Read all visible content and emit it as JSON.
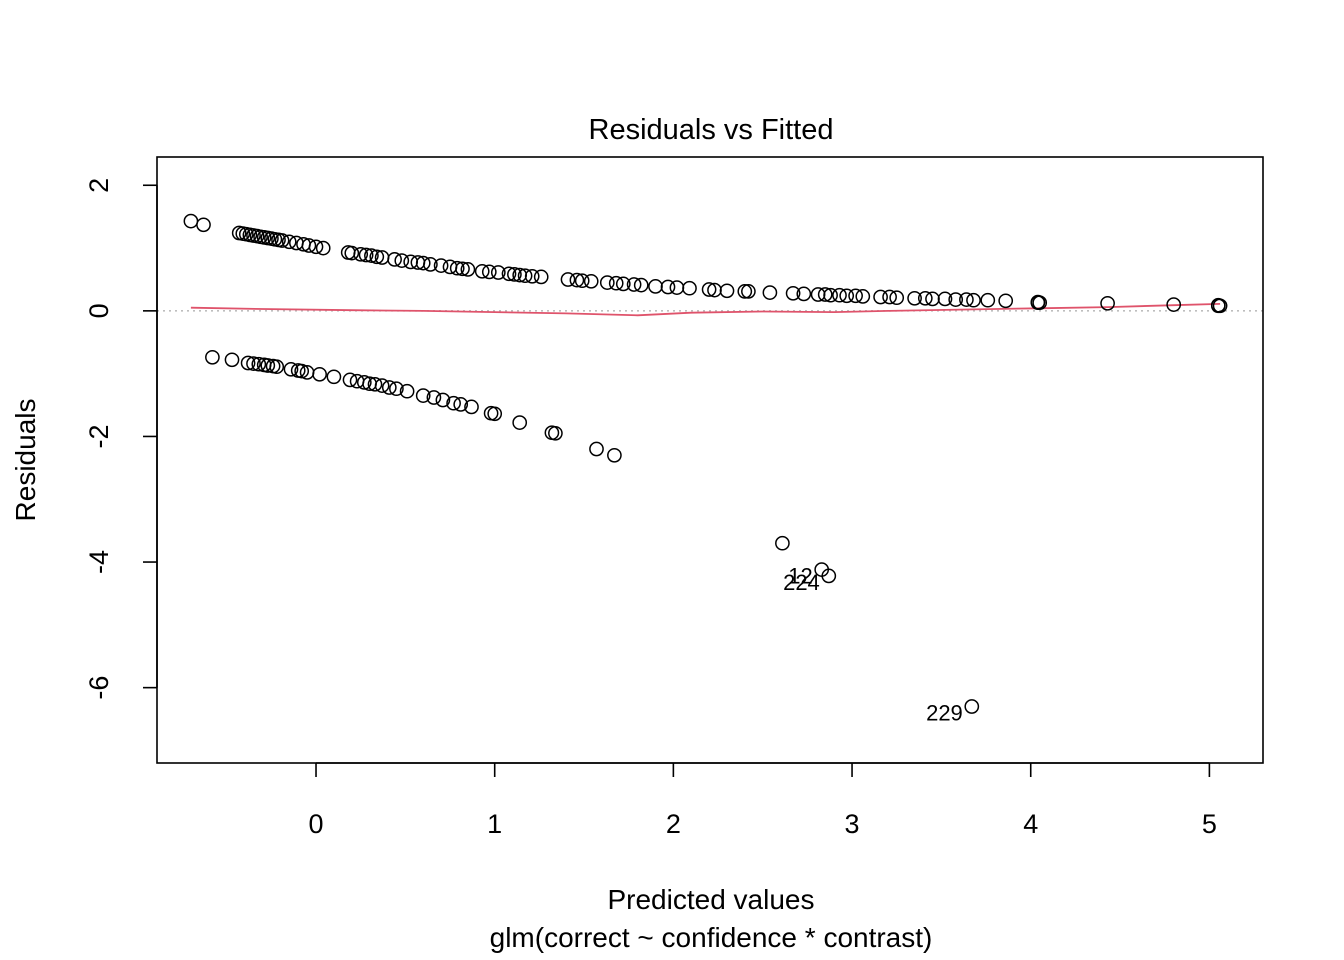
{
  "chart_data": {
    "type": "scatter",
    "title": "Residuals vs Fitted",
    "xlabel": "Predicted values",
    "subtitle": "glm(correct ~ confidence * contrast)",
    "ylabel": "Residuals",
    "xlim": [
      -0.89,
      5.3
    ],
    "ylim": [
      -7.2,
      2.45
    ],
    "xticks": [
      0,
      1,
      2,
      3,
      4,
      5
    ],
    "yticks": [
      -6,
      -4,
      -2,
      0,
      2
    ],
    "grid": false,
    "reference_line_y": 0,
    "colors": {
      "points": "#000000",
      "smooth": "#DF536B",
      "reference": "#BEBEBE"
    },
    "upper_band": [
      [
        -0.7,
        1.43
      ],
      [
        -0.63,
        1.37
      ],
      [
        -0.43,
        1.24
      ],
      [
        -0.41,
        1.23
      ],
      [
        -0.39,
        1.22
      ],
      [
        -0.37,
        1.21
      ],
      [
        -0.35,
        1.2
      ],
      [
        -0.33,
        1.19
      ],
      [
        -0.31,
        1.18
      ],
      [
        -0.29,
        1.17
      ],
      [
        -0.27,
        1.16
      ],
      [
        -0.25,
        1.15
      ],
      [
        -0.23,
        1.14
      ],
      [
        -0.21,
        1.13
      ],
      [
        -0.19,
        1.12
      ],
      [
        -0.15,
        1.1
      ],
      [
        -0.11,
        1.08
      ],
      [
        -0.07,
        1.06
      ],
      [
        -0.04,
        1.04
      ],
      [
        0.0,
        1.02
      ],
      [
        0.04,
        1.0
      ],
      [
        0.18,
        0.93
      ],
      [
        0.2,
        0.92
      ],
      [
        0.25,
        0.9
      ],
      [
        0.28,
        0.89
      ],
      [
        0.31,
        0.88
      ],
      [
        0.34,
        0.86
      ],
      [
        0.37,
        0.85
      ],
      [
        0.44,
        0.82
      ],
      [
        0.48,
        0.8
      ],
      [
        0.53,
        0.78
      ],
      [
        0.57,
        0.77
      ],
      [
        0.6,
        0.76
      ],
      [
        0.64,
        0.74
      ],
      [
        0.7,
        0.72
      ],
      [
        0.75,
        0.7
      ],
      [
        0.79,
        0.68
      ],
      [
        0.82,
        0.67
      ],
      [
        0.85,
        0.66
      ],
      [
        0.93,
        0.63
      ],
      [
        0.97,
        0.62
      ],
      [
        1.02,
        0.61
      ],
      [
        1.08,
        0.59
      ],
      [
        1.11,
        0.58
      ],
      [
        1.14,
        0.57
      ],
      [
        1.17,
        0.56
      ],
      [
        1.21,
        0.55
      ],
      [
        1.26,
        0.54
      ],
      [
        1.41,
        0.5
      ],
      [
        1.46,
        0.49
      ],
      [
        1.49,
        0.48
      ],
      [
        1.54,
        0.47
      ],
      [
        1.63,
        0.45
      ],
      [
        1.68,
        0.44
      ],
      [
        1.72,
        0.43
      ],
      [
        1.78,
        0.42
      ],
      [
        1.82,
        0.41
      ],
      [
        1.9,
        0.39
      ],
      [
        1.97,
        0.38
      ],
      [
        2.02,
        0.37
      ],
      [
        2.09,
        0.36
      ],
      [
        2.2,
        0.34
      ],
      [
        2.23,
        0.33
      ],
      [
        2.3,
        0.32
      ],
      [
        2.4,
        0.31
      ],
      [
        2.42,
        0.31
      ],
      [
        2.54,
        0.29
      ],
      [
        2.67,
        0.28
      ],
      [
        2.73,
        0.27
      ],
      [
        2.81,
        0.26
      ],
      [
        2.85,
        0.26
      ],
      [
        2.88,
        0.25
      ],
      [
        2.93,
        0.25
      ],
      [
        2.97,
        0.24
      ],
      [
        3.02,
        0.24
      ],
      [
        3.06,
        0.23
      ],
      [
        3.16,
        0.22
      ],
      [
        3.21,
        0.22
      ],
      [
        3.25,
        0.21
      ],
      [
        3.35,
        0.2
      ],
      [
        3.41,
        0.2
      ],
      [
        3.45,
        0.19
      ],
      [
        3.52,
        0.19
      ],
      [
        3.58,
        0.18
      ],
      [
        3.64,
        0.18
      ],
      [
        3.68,
        0.17
      ],
      [
        3.76,
        0.17
      ],
      [
        3.86,
        0.16
      ],
      [
        4.04,
        0.13
      ],
      [
        4.04,
        0.14
      ],
      [
        4.05,
        0.13
      ],
      [
        4.43,
        0.12
      ],
      [
        4.8,
        0.1
      ],
      [
        5.05,
        0.08
      ],
      [
        5.05,
        0.09
      ],
      [
        5.06,
        0.08
      ]
    ],
    "lower_band": [
      [
        -0.58,
        -0.74
      ],
      [
        -0.47,
        -0.78
      ],
      [
        -0.38,
        -0.83
      ],
      [
        -0.35,
        -0.84
      ],
      [
        -0.32,
        -0.85
      ],
      [
        -0.29,
        -0.86
      ],
      [
        -0.27,
        -0.87
      ],
      [
        -0.24,
        -0.88
      ],
      [
        -0.22,
        -0.89
      ],
      [
        -0.14,
        -0.93
      ],
      [
        -0.1,
        -0.95
      ],
      [
        -0.08,
        -0.96
      ],
      [
        -0.05,
        -0.98
      ],
      [
        0.02,
        -1.01
      ],
      [
        0.1,
        -1.05
      ],
      [
        0.19,
        -1.1
      ],
      [
        0.23,
        -1.12
      ],
      [
        0.27,
        -1.14
      ],
      [
        0.3,
        -1.16
      ],
      [
        0.33,
        -1.17
      ],
      [
        0.37,
        -1.19
      ],
      [
        0.41,
        -1.22
      ],
      [
        0.45,
        -1.24
      ],
      [
        0.51,
        -1.28
      ],
      [
        0.6,
        -1.35
      ],
      [
        0.66,
        -1.38
      ],
      [
        0.71,
        -1.42
      ],
      [
        0.77,
        -1.47
      ],
      [
        0.81,
        -1.49
      ],
      [
        0.87,
        -1.53
      ],
      [
        0.98,
        -1.63
      ],
      [
        1.0,
        -1.64
      ],
      [
        1.14,
        -1.78
      ],
      [
        1.32,
        -1.94
      ],
      [
        1.34,
        -1.95
      ],
      [
        1.57,
        -2.2
      ],
      [
        1.67,
        -2.3
      ],
      [
        2.61,
        -3.7
      ],
      [
        2.83,
        -4.12
      ],
      [
        2.87,
        -4.22
      ],
      [
        3.67,
        -6.3
      ]
    ],
    "labeled_points": [
      {
        "label": "224",
        "x": 2.87,
        "y": -4.22
      },
      {
        "label": "12",
        "x": 2.83,
        "y": -4.12
      },
      {
        "label": "229",
        "x": 3.67,
        "y": -6.3
      }
    ],
    "smooth_line": [
      [
        -0.7,
        0.05
      ],
      [
        -0.3,
        0.03
      ],
      [
        0.2,
        0.01
      ],
      [
        0.6,
        0.0
      ],
      [
        1.0,
        -0.02
      ],
      [
        1.4,
        -0.04
      ],
      [
        1.8,
        -0.07
      ],
      [
        2.1,
        -0.03
      ],
      [
        2.5,
        -0.01
      ],
      [
        2.9,
        -0.02
      ],
      [
        3.2,
        0.0
      ],
      [
        3.6,
        0.02
      ],
      [
        4.04,
        0.04
      ],
      [
        4.43,
        0.06
      ],
      [
        4.8,
        0.09
      ],
      [
        5.06,
        0.11
      ]
    ]
  }
}
